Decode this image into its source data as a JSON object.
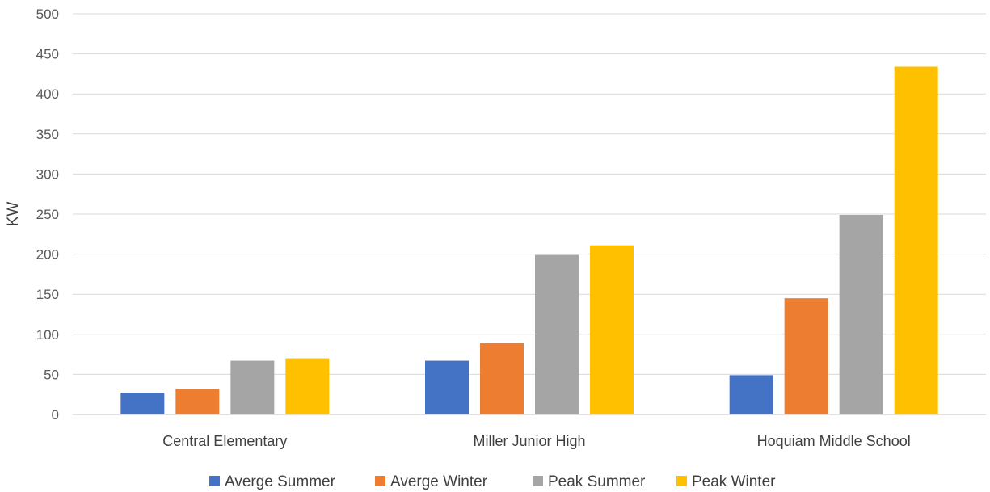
{
  "chart_data": {
    "type": "bar",
    "title": "",
    "xlabel": "",
    "ylabel": "KW",
    "ylim": [
      0,
      500
    ],
    "yticks": [
      0,
      50,
      100,
      150,
      200,
      250,
      300,
      350,
      400,
      450,
      500
    ],
    "grid": true,
    "legend_position": "bottom",
    "categories": [
      "Central Elementary",
      "Miller Junior High",
      "Hoquiam Middle School"
    ],
    "series": [
      {
        "name": "Averge Summer",
        "color": "#4472c4",
        "values": [
          27,
          67,
          49
        ]
      },
      {
        "name": "Averge Winter",
        "color": "#ed7d31",
        "values": [
          32,
          89,
          145
        ]
      },
      {
        "name": "Peak Summer",
        "color": "#a5a5a5",
        "values": [
          67,
          199,
          249
        ]
      },
      {
        "name": "Peak Winter",
        "color": "#ffc000",
        "values": [
          70,
          211,
          434
        ]
      }
    ]
  }
}
